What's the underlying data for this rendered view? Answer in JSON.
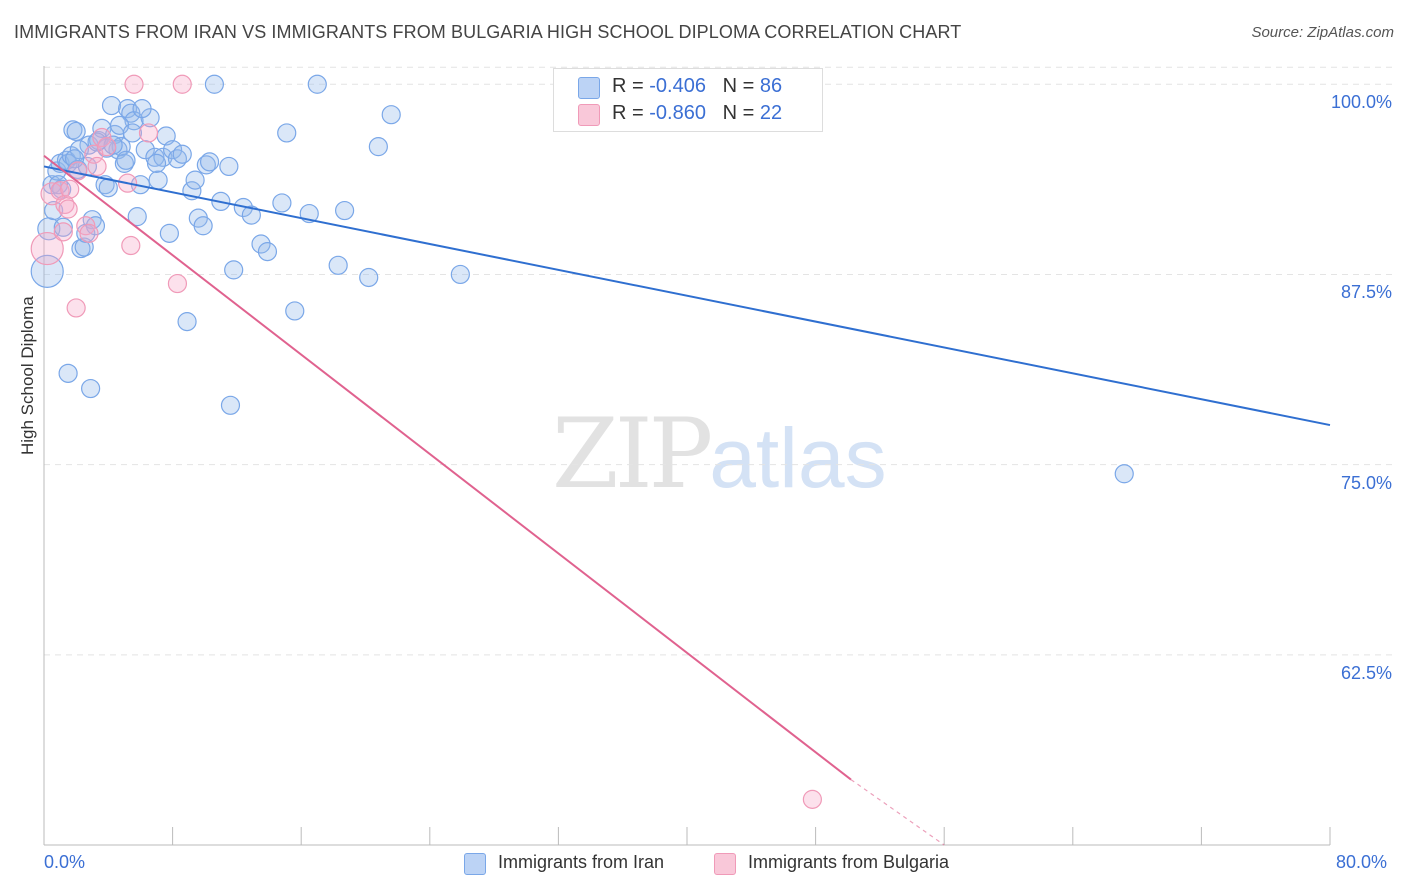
{
  "header": {
    "title": "IMMIGRANTS FROM IRAN VS IMMIGRANTS FROM BULGARIA HIGH SCHOOL DIPLOMA CORRELATION CHART",
    "source": "Source: ZipAtlas.com"
  },
  "watermark": {
    "left": "ZIP",
    "right": "atlas"
  },
  "legend": {
    "iran": {
      "r_label": "R = ",
      "r_value": "-0.406",
      "n_label": "N = ",
      "n_value": "86"
    },
    "bulgaria": {
      "r_label": "R = ",
      "r_value": "-0.860",
      "n_label": "N = ",
      "n_value": "22"
    }
  },
  "colors": {
    "iran": "#7aa7e8",
    "iran_line": "#2f6fd0",
    "bulgaria": "#f09ab8",
    "bulgaria_line": "#e0628f",
    "tick_text": "#3b6fd4"
  },
  "chart_data": {
    "type": "scatter",
    "title": "IMMIGRANTS FROM IRAN VS IMMIGRANTS FROM BULGARIA HIGH SCHOOL DIPLOMA CORRELATION CHART",
    "xlabel": "",
    "ylabel": "High School Diploma",
    "xlim": [
      0,
      80
    ],
    "ylim": [
      50,
      101.2
    ],
    "x_tick_labels": [
      "0.0%",
      "80.0%"
    ],
    "y_ticks": [
      62.5,
      75.0,
      87.5,
      100.0
    ],
    "y_tick_labels": [
      "62.5%",
      "75.0%",
      "87.5%",
      "100.0%"
    ],
    "legend_position": "bottom",
    "series": [
      {
        "name": "Immigrants from Iran",
        "r": -0.406,
        "n": 86,
        "trend": {
          "x": [
            0,
            80
          ],
          "y": [
            94.6,
            77.6
          ]
        },
        "points": [
          [
            0.2,
            87.7
          ],
          [
            0.3,
            90.5
          ],
          [
            0.5,
            93.4
          ],
          [
            0.8,
            94.3
          ],
          [
            1.0,
            94.8
          ],
          [
            1.2,
            90.6
          ],
          [
            1.4,
            95.0
          ],
          [
            1.5,
            94.8
          ],
          [
            1.7,
            95.3
          ],
          [
            1.8,
            97.0
          ],
          [
            2.0,
            96.9
          ],
          [
            2.1,
            94.4
          ],
          [
            2.3,
            89.2
          ],
          [
            2.5,
            89.3
          ],
          [
            2.6,
            90.2
          ],
          [
            2.8,
            96.0
          ],
          [
            3.0,
            91.1
          ],
          [
            3.2,
            90.7
          ],
          [
            3.4,
            96.3
          ],
          [
            3.6,
            97.1
          ],
          [
            3.8,
            93.4
          ],
          [
            4.0,
            93.2
          ],
          [
            4.2,
            98.6
          ],
          [
            4.4,
            96.7
          ],
          [
            4.6,
            95.7
          ],
          [
            4.8,
            95.9
          ],
          [
            5.0,
            94.8
          ],
          [
            5.2,
            98.4
          ],
          [
            5.4,
            98.1
          ],
          [
            5.6,
            97.6
          ],
          [
            5.8,
            91.3
          ],
          [
            6.0,
            93.4
          ],
          [
            6.3,
            95.7
          ],
          [
            6.6,
            97.8
          ],
          [
            6.9,
            95.2
          ],
          [
            7.1,
            93.7
          ],
          [
            7.4,
            95.2
          ],
          [
            7.6,
            96.6
          ],
          [
            7.8,
            90.2
          ],
          [
            8.0,
            95.7
          ],
          [
            8.3,
            95.1
          ],
          [
            8.6,
            95.4
          ],
          [
            8.9,
            84.4
          ],
          [
            9.2,
            93.0
          ],
          [
            9.6,
            91.2
          ],
          [
            9.9,
            90.7
          ],
          [
            10.1,
            94.7
          ],
          [
            10.3,
            94.9
          ],
          [
            10.6,
            100.0
          ],
          [
            11.0,
            92.3
          ],
          [
            11.5,
            94.6
          ],
          [
            11.8,
            87.8
          ],
          [
            12.4,
            91.9
          ],
          [
            12.9,
            91.4
          ],
          [
            13.5,
            89.5
          ],
          [
            13.9,
            89.0
          ],
          [
            14.8,
            92.2
          ],
          [
            15.1,
            96.8
          ],
          [
            15.6,
            85.1
          ],
          [
            16.5,
            91.5
          ],
          [
            17.0,
            100.0
          ],
          [
            18.3,
            88.1
          ],
          [
            18.7,
            91.7
          ],
          [
            20.2,
            87.3
          ],
          [
            20.8,
            95.9
          ],
          [
            21.6,
            98.0
          ],
          [
            25.9,
            87.5
          ],
          [
            2.9,
            80.0
          ],
          [
            1.5,
            81.0
          ],
          [
            11.6,
            78.9
          ],
          [
            67.2,
            74.4
          ],
          [
            0.6,
            91.7
          ],
          [
            1.1,
            93.1
          ],
          [
            2.7,
            94.6
          ],
          [
            3.9,
            95.8
          ],
          [
            6.1,
            98.4
          ],
          [
            4.7,
            97.3
          ],
          [
            5.5,
            96.8
          ],
          [
            7.0,
            94.8
          ],
          [
            9.4,
            93.7
          ],
          [
            3.3,
            96.2
          ],
          [
            2.2,
            95.7
          ],
          [
            0.9,
            93.4
          ],
          [
            1.9,
            95.1
          ],
          [
            5.1,
            95.0
          ],
          [
            4.3,
            96.0
          ]
        ]
      },
      {
        "name": "Immigrants from Bulgaria",
        "r": -0.86,
        "n": 22,
        "trend": {
          "x": [
            0,
            50.2
          ],
          "y": [
            95.3,
            54.3
          ],
          "dashed_to": {
            "x": [
              50.2,
              56.0
            ],
            "y": [
              54.3,
              49.6
            ]
          }
        },
        "points": [
          [
            0.2,
            89.2
          ],
          [
            0.5,
            92.8
          ],
          [
            1.0,
            93.0
          ],
          [
            1.3,
            92.1
          ],
          [
            1.6,
            93.1
          ],
          [
            1.5,
            91.8
          ],
          [
            2.1,
            94.3
          ],
          [
            2.6,
            90.7
          ],
          [
            2.8,
            90.2
          ],
          [
            3.1,
            95.4
          ],
          [
            3.3,
            94.6
          ],
          [
            3.6,
            96.5
          ],
          [
            5.2,
            93.5
          ],
          [
            5.4,
            89.4
          ],
          [
            6.5,
            96.8
          ],
          [
            5.6,
            100.0
          ],
          [
            8.3,
            86.9
          ],
          [
            8.6,
            100.0
          ],
          [
            2.0,
            85.3
          ],
          [
            47.8,
            53.0
          ],
          [
            1.2,
            90.3
          ],
          [
            3.9,
            95.9
          ]
        ]
      }
    ]
  },
  "bottom_legend": {
    "iran": "Immigrants from Iran",
    "bulgaria": "Immigrants from Bulgaria"
  }
}
